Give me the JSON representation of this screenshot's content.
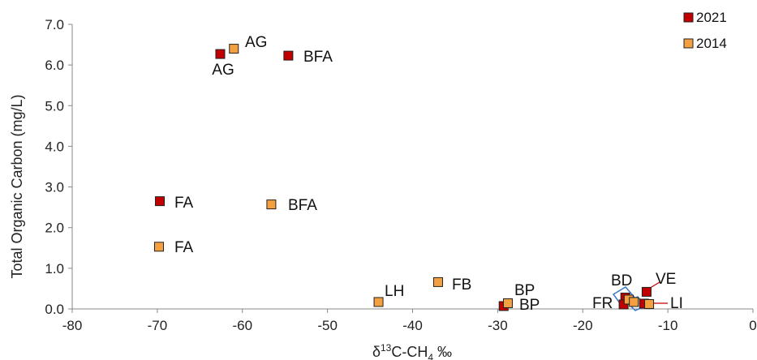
{
  "chart_data": {
    "type": "scatter",
    "xlabel_parts": {
      "delta": "δ",
      "mass": "13",
      "c": "C-CH",
      "sub": "4",
      "permil": " ‰"
    },
    "ylabel": "Total Organic Carbon (mg/L)",
    "xlim": [
      -80,
      0
    ],
    "ylim": [
      0,
      7
    ],
    "xticks": [
      "-80",
      "-70",
      "-60",
      "-50",
      "-40",
      "-30",
      "-20",
      "-10",
      "0"
    ],
    "yticks": [
      "0.0",
      "1.0",
      "2.0",
      "3.0",
      "4.0",
      "5.0",
      "6.0",
      "7.0"
    ],
    "grid": false,
    "legend_position": "top-right",
    "series": [
      {
        "name": "2021",
        "color": "#c00000",
        "points": [
          {
            "label": "AG",
            "x": -62.6,
            "y": 6.27
          },
          {
            "label": "BFA",
            "x": -54.6,
            "y": 6.23
          },
          {
            "label": "FA",
            "x": -69.7,
            "y": 2.65
          },
          {
            "label": "BP",
            "x": -29.3,
            "y": 0.07
          },
          {
            "label": "VE",
            "x": -12.5,
            "y": 0.42
          },
          {
            "label": "BD",
            "x": -15.0,
            "y": 0.28
          },
          {
            "label": "FR",
            "x": -15.2,
            "y": 0.11
          },
          {
            "label": "LI",
            "x": -12.8,
            "y": 0.13
          }
        ]
      },
      {
        "name": "2014",
        "color": "#f4a040",
        "points": [
          {
            "label": "AG",
            "x": -61.0,
            "y": 6.4
          },
          {
            "label": "BFA",
            "x": -56.6,
            "y": 2.57
          },
          {
            "label": "FA",
            "x": -69.8,
            "y": 1.53
          },
          {
            "label": "LH",
            "x": -44.0,
            "y": 0.17
          },
          {
            "label": "FB",
            "x": -37.0,
            "y": 0.66
          },
          {
            "label": "BP",
            "x": -28.8,
            "y": 0.14
          },
          {
            "label": "BD",
            "x": -14.6,
            "y": 0.23
          },
          {
            "label": "FR",
            "x": -14.0,
            "y": 0.17
          },
          {
            "label": "LI",
            "x": -12.2,
            "y": 0.12
          }
        ]
      }
    ],
    "point_labels": [
      {
        "text": "AG"
      },
      {
        "text": "AG"
      },
      {
        "text": "BFA"
      },
      {
        "text": "FA"
      },
      {
        "text": "BFA"
      },
      {
        "text": "FA"
      },
      {
        "text": "LH"
      },
      {
        "text": "FB"
      },
      {
        "text": "BP"
      },
      {
        "text": "BP"
      },
      {
        "text": "BD"
      },
      {
        "text": "VE"
      },
      {
        "text": "FR"
      },
      {
        "text": "LI"
      }
    ]
  }
}
